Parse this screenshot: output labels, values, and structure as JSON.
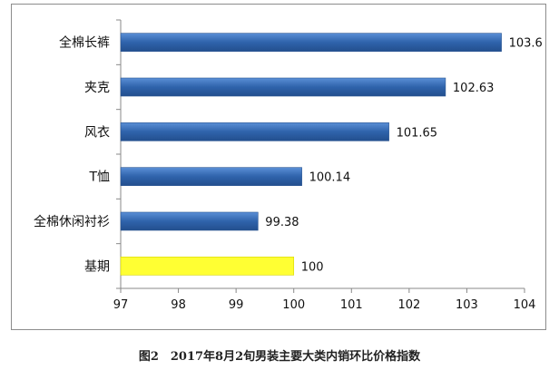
{
  "caption": "图2　2017年8月2旬男装主要大类内销环比价格指数",
  "chart_data": {
    "type": "bar",
    "orientation": "horizontal",
    "categories": [
      "全棉长裤",
      "夹克",
      "风衣",
      "T恤",
      "全棉休闲衬衫",
      "基期"
    ],
    "values": [
      103.6,
      102.63,
      101.65,
      100.14,
      99.38,
      100
    ],
    "value_labels": [
      "103.6",
      "102.63",
      "101.65",
      "100.14",
      "99.38",
      "100"
    ],
    "bar_colors": [
      "#3a6db3",
      "#3a6db3",
      "#3a6db3",
      "#3a6db3",
      "#3a6db3",
      "#ffff33"
    ],
    "xlim": [
      97,
      104
    ],
    "xticks": [
      "97",
      "98",
      "99",
      "100",
      "101",
      "102",
      "103",
      "104"
    ],
    "grid": false,
    "legend": "none"
  }
}
